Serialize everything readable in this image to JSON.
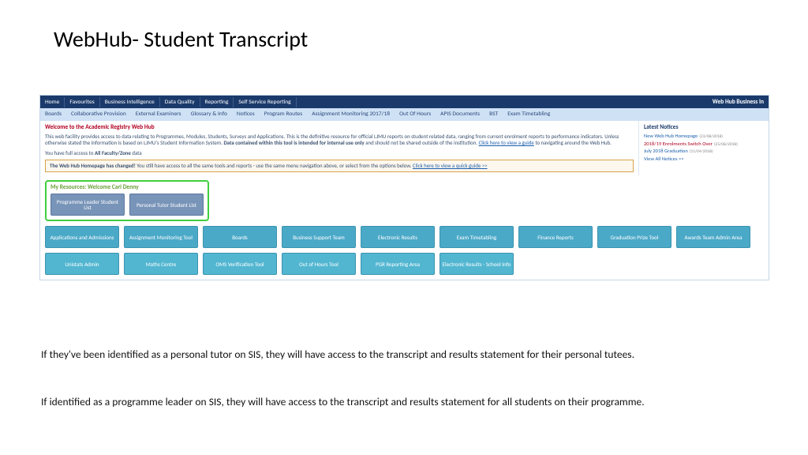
{
  "slide": {
    "title": "WebHub- Student Transcript"
  },
  "nav": {
    "primary": [
      "Home",
      "Favourites",
      "Business Intelligence",
      "Data Quality",
      "Reporting",
      "Self Service Reporting"
    ],
    "brand": "Web Hub Business In",
    "secondary": [
      "Boards",
      "Collaborative Provision",
      "External Examiners",
      "Glossary & Info",
      "Notices",
      "Program Routes",
      "Assignment Monitoring 2017/18",
      "Out Of Hours",
      "APIS Documents",
      "BST",
      "Exam Timetabling"
    ]
  },
  "welcome": {
    "title": "Welcome to the Academic Registry Web Hub",
    "para1a": "This web facility provides access to data relating to Programmes, Modules, Students, Surveys and Applications. This is the definitive resource for official LJMU reports on student related data, ranging from current enrolment reports to performance indicators. Unless otherwise stated the information is based on LJMU's Student Information System. ",
    "para1b": "Data contained within this tool is intended for internal use only",
    "para1c": " and should not be shared outside of the institution. ",
    "para1link": "Click here to view a guide",
    "para1d": " to navigating around the Web Hub.",
    "para2a": "You have full access to ",
    "para2b": "All Faculty/Zone",
    "para2c": " data"
  },
  "changed": {
    "lead": "The Web Hub Homepage has changed!",
    "rest": " You still have access to all the same tools and reports - use the same menu navigation above, or select from the options below. ",
    "link": "Click here to view a quick guide >>"
  },
  "notices": {
    "title": "Latest Notices",
    "items": [
      {
        "label": "New Web Hub Homepage",
        "date": "(23/08/2018)",
        "red": false
      },
      {
        "label": "2018/19 Enrolments Switch Over",
        "date": "(25/08/2018)",
        "red": true
      },
      {
        "label": "July 2018 Graduation",
        "date": "(11/04/2018)",
        "red": false
      }
    ],
    "viewAll": "View All Notices >>"
  },
  "myResources": {
    "title": "My Resources: Welcome Carl Denny",
    "tiles": [
      "Programme Leader Student List",
      "Personal Tutor Student List"
    ]
  },
  "tilesRow1": [
    "Applications and Admissions",
    "Assignment Monitoring Tool",
    "Boards",
    "Business Support Team",
    "Electronic Results",
    "Exam Timetabling",
    "Finance Reports",
    "Graduation Prize Tool",
    "Awards Team Admin Area"
  ],
  "tilesRow2": [
    "Unistats Admin",
    "Maths Centre",
    "OMS Verification Tool",
    "Out of Hours Tool",
    "PGR Reporting Area",
    "Electronic Results - School Info"
  ],
  "bodyText": {
    "p1": "If they've been identified as a personal tutor on SIS, they will have access to the transcript and results statement for their personal tutees.",
    "p2": "If identified as a programme leader on SIS, they will have access to the transcript and results statement for all students on their programme."
  },
  "colors": {
    "navPrimary": "#1b3a6b",
    "navSecondary": "#cfe1f5",
    "welcomeTitle": "#b00020",
    "highlight": "#3fcf3f",
    "tileA": "#7894b8",
    "tileB": "#4ba9c8",
    "tileC": "#52b6d1"
  }
}
